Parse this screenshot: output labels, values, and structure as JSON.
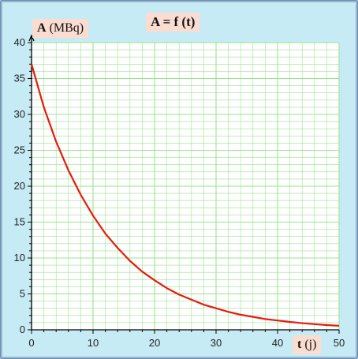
{
  "chart_data": {
    "type": "line",
    "title": "A = f (t)",
    "ylabel_bold": "A",
    "ylabel_unit": "(MBq)",
    "xlabel_bold": "t",
    "xlabel_unit": "(j)",
    "xlim": [
      0,
      50
    ],
    "ylim": [
      0,
      40
    ],
    "xticks": [
      0,
      10,
      20,
      30,
      40,
      50
    ],
    "yticks": [
      0,
      5,
      10,
      15,
      20,
      25,
      30,
      35,
      40
    ],
    "grid": true,
    "series": [
      {
        "color": "#e81a10",
        "x": [
          0,
          2,
          4,
          6,
          8,
          10,
          12,
          14,
          16,
          18,
          20,
          22,
          24,
          26,
          28,
          30,
          32,
          34,
          36,
          38,
          40,
          42,
          44,
          46,
          48,
          50
        ],
        "y": [
          37.0,
          31.0,
          26.2,
          22.2,
          18.8,
          15.9,
          13.4,
          11.4,
          9.6,
          8.1,
          6.9,
          5.8,
          4.9,
          4.2,
          3.5,
          3.0,
          2.5,
          2.1,
          1.8,
          1.5,
          1.3,
          1.1,
          0.93,
          0.79,
          0.66,
          0.56
        ]
      }
    ]
  },
  "colors": {
    "background": "#c6ebf5",
    "plot_area": "#ffffff",
    "grid": "#9be38f",
    "axis": "#000000",
    "curve": "#e81a10",
    "label_box": "#fbdcd0"
  }
}
